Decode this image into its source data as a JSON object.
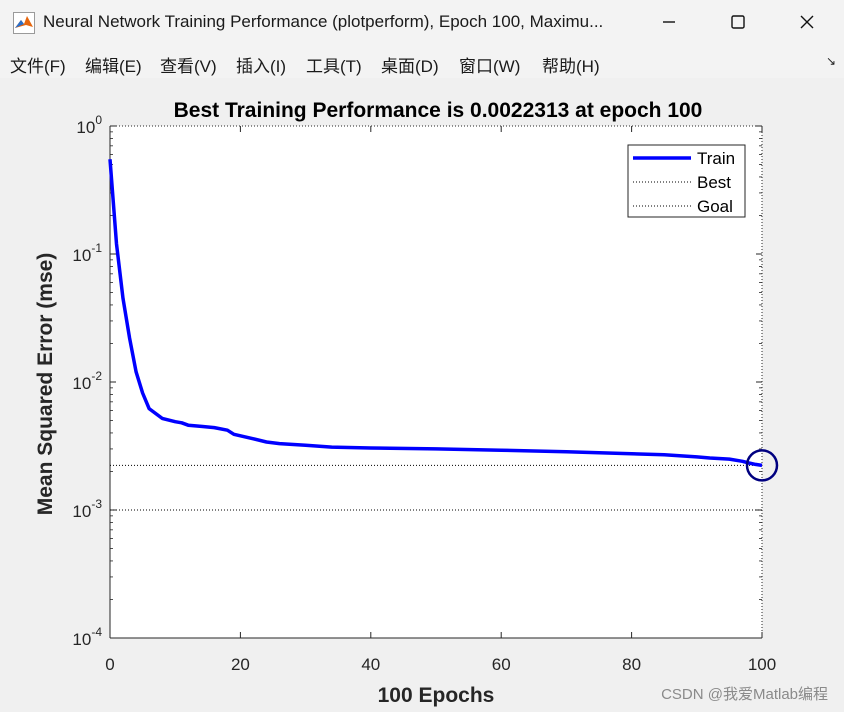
{
  "window": {
    "title": "Neural Network Training Performance (plotperform), Epoch 100, Maximu...",
    "minimize_icon": "minimize-icon",
    "maximize_icon": "maximize-icon",
    "close_icon": "close-icon"
  },
  "menu": {
    "items": [
      "文件(F)",
      "编辑(E)",
      "查看(V)",
      "插入(I)",
      "工具(T)",
      "桌面(D)",
      "窗口(W)",
      "帮助(H)"
    ]
  },
  "watermark": "CSDN @我爱Matlab编程",
  "chart_data": {
    "type": "line",
    "title": "Best Training Performance is 0.0022313 at epoch 100",
    "xlabel": "100 Epochs",
    "ylabel": "Mean Squared Error  (mse)",
    "xlim": [
      0,
      100
    ],
    "ylim": [
      0.0001,
      1
    ],
    "yscale": "log",
    "xticks": [
      0,
      20,
      40,
      60,
      80,
      100
    ],
    "yticks": [
      {
        "value": 1,
        "base": "10",
        "exp": "0"
      },
      {
        "value": 0.1,
        "base": "10",
        "exp": "-1"
      },
      {
        "value": 0.01,
        "base": "10",
        "exp": "-2"
      },
      {
        "value": 0.001,
        "base": "10",
        "exp": "-3"
      },
      {
        "value": 0.0001,
        "base": "10",
        "exp": "-4"
      }
    ],
    "legend": {
      "position": "top-right",
      "entries": [
        "Train",
        "Best",
        "Goal"
      ]
    },
    "series": [
      {
        "name": "Train",
        "color": "#0000ff",
        "x": [
          0,
          1,
          2,
          3,
          4,
          5,
          6,
          8,
          10,
          11,
          12,
          14,
          16,
          18,
          19,
          20,
          22,
          24,
          26,
          30,
          34,
          40,
          50,
          60,
          70,
          80,
          85,
          90,
          92,
          95,
          97,
          98,
          99,
          100
        ],
        "y": [
          0.55,
          0.12,
          0.045,
          0.022,
          0.012,
          0.0082,
          0.0062,
          0.0052,
          0.0049,
          0.0048,
          0.0046,
          0.0045,
          0.0044,
          0.0042,
          0.0039,
          0.0038,
          0.0036,
          0.0034,
          0.0033,
          0.0032,
          0.0031,
          0.00305,
          0.003,
          0.00293,
          0.00285,
          0.00275,
          0.0027,
          0.0026,
          0.00255,
          0.0025,
          0.0024,
          0.00233,
          0.00227,
          0.0022313
        ]
      },
      {
        "name": "Best",
        "color": "#000000",
        "style": "dotted",
        "y": 0.0022313
      },
      {
        "name": "Goal",
        "color": "#000000",
        "style": "dotted",
        "y": 0.001
      }
    ],
    "best_marker": {
      "x": 100,
      "y": 0.0022313,
      "shape": "circle",
      "color": "#000080"
    }
  }
}
